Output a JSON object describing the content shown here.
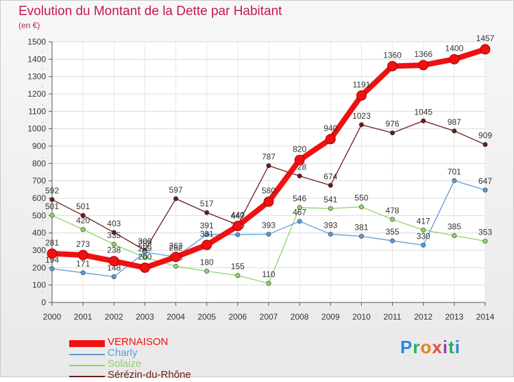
{
  "chart_data": {
    "type": "line",
    "title": "Evolution du Montant de la Dette par Habitant",
    "subtitle": "(en €)",
    "x": [
      "2000",
      "2001",
      "2002",
      "2003",
      "2004",
      "2005",
      "2006",
      "2007",
      "2008",
      "2009",
      "2010",
      "2011",
      "2012",
      "2013",
      "2014"
    ],
    "ylim": [
      0,
      1500
    ],
    "yticks": [
      0,
      100,
      200,
      300,
      400,
      500,
      600,
      700,
      800,
      900,
      1000,
      1100,
      1200,
      1300,
      1400,
      1500
    ],
    "grid": true,
    "legend_position": "bottom-left",
    "series": [
      {
        "name": "Sérézin-du-Rhône",
        "color": "#6b1a1a",
        "values": [
          592,
          501,
          403,
          300,
          597,
          517,
          447,
          787,
          728,
          674,
          1023,
          976,
          1045,
          987,
          909
        ]
      },
      {
        "name": "Solaize",
        "color": "#8fd46a",
        "values": [
          501,
          420,
          335,
          259,
          208,
          180,
          155,
          110,
          546,
          541,
          550,
          478,
          417,
          385,
          353
        ]
      },
      {
        "name": "Charly",
        "color": "#5b9bd5",
        "values": [
          194,
          171,
          148,
          289,
          262,
          391,
          390,
          393,
          467,
          393,
          381,
          355,
          330,
          701,
          647
        ]
      },
      {
        "name": "VERNAISON",
        "color": "#ee1111",
        "values": [
          281,
          273,
          238,
          200,
          262,
          331,
          440,
          580,
          820,
          940,
          1191,
          1360,
          1366,
          1400,
          1457
        ]
      }
    ]
  },
  "legend": {
    "items": [
      {
        "label": "VERNAISON",
        "color": "#ee1111"
      },
      {
        "label": "Charly",
        "color": "#5b9bd5"
      },
      {
        "label": "Solaize",
        "color": "#8fd46a"
      },
      {
        "label": "Sérézin-du-Rhône",
        "color": "#6b1a1a"
      }
    ]
  },
  "brand": {
    "logo_text": "Proxiti",
    "colors": [
      "#2e86de",
      "#27ae60",
      "#e67e22",
      "#e74c3c",
      "#8e44ad",
      "#27ae60",
      "#2e86de"
    ]
  }
}
